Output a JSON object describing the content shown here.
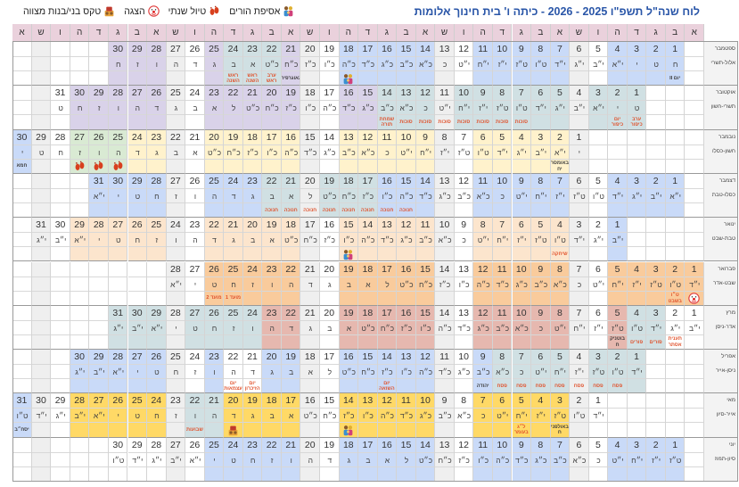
{
  "title": "לוח שנה\"ל תשפ\"ו 2025 - 2026 - כיתה ו' בית חינוך אלומות",
  "legend": [
    {
      "icon": "parents",
      "label": "אסיפת הורים"
    },
    {
      "icon": "trip",
      "label": "טיול שנתי"
    },
    {
      "icon": "clown",
      "label": "הצגה"
    },
    {
      "icon": "mitzvah",
      "label": "טקס בני/בנות מצווה"
    }
  ],
  "weekdays": [
    "א",
    "ב",
    "ג",
    "ד",
    "ה",
    "ו",
    "ש"
  ],
  "colors": {
    "B": "#c9daf8",
    "P": "#d9d2e9",
    "T": "#d0e0e3",
    "L": "#fce5cd",
    "O": "#f9cb9c",
    "R": "#e6b8af",
    "Y": "#ffd966",
    "y": "#fff2cc",
    "G": "#d9ead3",
    "S": "#efefef",
    "W": "#ffffff"
  },
  "months": [
    {
      "greg": "ספטמבר",
      "heb": "אלול-תשרי",
      "offset": 1,
      "dates": [
        1,
        2,
        3,
        4,
        5,
        6,
        7,
        8,
        9,
        10,
        11,
        12,
        13,
        14,
        15,
        16,
        17,
        18,
        19,
        20,
        21,
        22,
        23,
        24,
        25,
        26,
        27,
        28,
        29,
        30
      ],
      "hebrew": "ח ט י י״א י״ב י״ג י״ד ט״ו ט״ז י״ז י״ח י״ט כ כ״א כ״ב כ״ג כ״ד כ״ה כ״ו כ״ז כ״ח כ״ט א ב ג ד ה ו ז ח",
      "fill": "BBBBWSBBBBBWSBBBBBWSPTTTPWSPPP",
      "events": [
        {
          "d": 1,
          "text": "יום II",
          "dark": true
        },
        {
          "d": 18,
          "icon": "parents"
        },
        {
          "d": 21,
          "text": "גאוגרפיה",
          "dark": true
        },
        {
          "d": 22,
          "text": "ערב ראש"
        },
        {
          "d": 23,
          "text": "ראש השנה"
        },
        {
          "d": 24,
          "text": "ראש השנה"
        }
      ]
    },
    {
      "greg": "אוקטובר",
      "heb": "תשרי-חשון",
      "offset": 3,
      "dates": [
        1,
        2,
        3,
        4,
        5,
        6,
        7,
        8,
        9,
        10,
        11,
        12,
        13,
        14,
        15,
        16,
        17,
        18,
        19,
        20,
        21,
        22,
        23,
        24,
        25,
        26,
        27,
        28,
        29,
        30,
        31
      ],
      "hebrew": "ט י י״א י״ב י״ג י״ד ט״ו ט״ז י״ז י״ח י״ט כ כ״א כ״ב כ״ג כ״ד כ״ה כ״ו כ״ז כ״ח כ״ט ל א ב ג ד ה ו ז ח ט",
      "fill": "TTTSTTTTTTSTTTPPWSPPPPPWSPPPPPW",
      "events": [
        {
          "d": 1,
          "text": "ערב כיפור"
        },
        {
          "d": 2,
          "text": "יום כיפור"
        },
        {
          "d": 7,
          "text": "סוכות"
        },
        {
          "d": 8,
          "text": "סוכות"
        },
        {
          "d": 9,
          "text": "סוכות"
        },
        {
          "d": 10,
          "text": "סוכות"
        },
        {
          "d": 11,
          "text": "סוכות"
        },
        {
          "d": 12,
          "text": "סוכות"
        },
        {
          "d": 13,
          "text": "סוכות"
        },
        {
          "d": 14,
          "text": "שמחת תורה"
        }
      ]
    },
    {
      "greg": "נובמבר",
      "heb": "חשון-כסלו",
      "offset": 6,
      "dates": [
        1,
        2,
        3,
        4,
        5,
        6,
        7,
        8,
        9,
        10,
        11,
        12,
        13,
        14,
        15,
        16,
        17,
        18,
        19,
        20,
        21,
        22,
        23,
        24,
        25,
        26,
        27,
        28,
        29,
        30
      ],
      "hebrew": "י י״א י״ב י״ג י״ד ט״ו ט״ז י״ז י״ח י״ט כ כ״א כ״ב כ״ג כ״ד כ״ה כ״ו כ״ז כ״ח כ״ט א ב ג ד ה ו ז ח ט י",
      "fill": "SyyyyyWSyyyyyWSyyyyyWSyyGGGWSB",
      "events": [
        {
          "d": 2,
          "text": "באומסר יח",
          "dark": true
        },
        {
          "d": 25,
          "icon": "trip"
        },
        {
          "d": 26,
          "icon": "trip"
        },
        {
          "d": 27,
          "icon": "trip"
        },
        {
          "d": 30,
          "text": "חמא",
          "dark": true
        }
      ]
    },
    {
      "greg": "דצמבר",
      "heb": "כסלו-טבת",
      "offset": 1,
      "dates": [
        1,
        2,
        3,
        4,
        5,
        6,
        7,
        8,
        9,
        10,
        11,
        12,
        13,
        14,
        15,
        16,
        17,
        18,
        19,
        20,
        21,
        22,
        23,
        24,
        25,
        26,
        27,
        28,
        29,
        30,
        31
      ],
      "hebrew": "י״א י״ב י״ג י״ד ט״ו ט״ז י״ז י״ח י״ט כ כ״א כ״ב כ״ג כ״ד כ״ה כ״ו כ״ז כ״ח כ״ט ל א ב ג ד ה ו ז ח ט י י״א",
      "fill": "BBBBWSBBBBBWSBBBTTTSTTBBBWSBBBB",
      "events": [
        {
          "d": 15,
          "text": "חנוכה"
        },
        {
          "d": 16,
          "text": "חנוכה"
        },
        {
          "d": 17,
          "text": "חנוכה"
        },
        {
          "d": 18,
          "text": "חנוכה"
        },
        {
          "d": 19,
          "text": "חנוכה"
        },
        {
          "d": 20,
          "text": "חנוכה"
        },
        {
          "d": 21,
          "text": "חנוכה"
        },
        {
          "d": 22,
          "text": "חנוכה"
        }
      ]
    },
    {
      "greg": "ינואר",
      "heb": "טבת-שבט",
      "offset": 4,
      "dates": [
        1,
        2,
        3,
        4,
        5,
        6,
        7,
        8,
        9,
        10,
        11,
        12,
        13,
        14,
        15,
        16,
        17,
        18,
        19,
        20,
        21,
        22,
        23,
        24,
        25,
        26,
        27,
        28,
        29,
        30,
        31
      ],
      "hebrew": "י״ב י״ג י״ד ט״ו ט״ז י״ז י״ח י״ט כ כ״א כ״ב כ״ג כ״ד כ״ה כ״ו כ״ז כ״ח כ״ט א ב ג ד ה ו ז ח ט י י״א י״ב י״ג",
      "fill": "BWSLLLLLWSLLLLLWSLLLLLWSLLLLLWS",
      "events": [
        {
          "d": 4,
          "text": "שיחקה"
        },
        {
          "d": 15,
          "icon": "parents"
        }
      ]
    },
    {
      "greg": "פברואר",
      "heb": "שבט-אדר",
      "offset": 0,
      "dates": [
        1,
        2,
        3,
        4,
        5,
        6,
        7,
        8,
        9,
        10,
        11,
        12,
        13,
        14,
        15,
        16,
        17,
        18,
        19,
        20,
        21,
        22,
        23,
        24,
        25,
        26,
        27,
        28
      ],
      "hebrew": "י״ד ט״ו ט״ז י״ז י״ח י״ט כ כ״א כ״ב כ״ג כ״ד כ״ה כ״ו כ״ז כ״ח כ״ט ל א ב ג ד ה ו ז ח ט י י״א",
      "fill": "OOOOOWSOOOOOWSOOOOOWSOOOOOWS",
      "events": [
        {
          "d": 1,
          "icon": "clown"
        },
        {
          "d": 2,
          "text": "ט״ו בשבט"
        },
        {
          "d": 25,
          "text": "מועד 1"
        },
        {
          "d": 26,
          "text": "מועד 2"
        }
      ]
    },
    {
      "greg": "מרץ",
      "heb": "אדר-ניסן",
      "offset": 0,
      "dates": [
        1,
        2,
        3,
        4,
        5,
        6,
        7,
        8,
        9,
        10,
        11,
        12,
        13,
        14,
        15,
        16,
        17,
        18,
        19,
        20,
        21,
        22,
        23,
        24,
        25,
        26,
        27,
        28,
        29,
        30,
        31
      ],
      "hebrew": "י״ב י״ג י״ד ט״ו ט״ז י״ז י״ח י״ט כ כ״א כ״ב כ״ג כ״ד כ״ה כ״ו כ״ז כ״ח כ״ט א ב ג ד ה ו ז ח ט י י״א י״ב י״ג",
      "fill": "WWTTRWSRRRRRWSRRRRRWSRRTTTTSTTT",
      "events": [
        {
          "d": 2,
          "text": "תענית אסתר"
        },
        {
          "d": 3,
          "text": "פורים"
        },
        {
          "d": 4,
          "text": "פורים"
        },
        {
          "d": 5,
          "text": "בוטניק ח",
          "dark": true
        }
      ]
    },
    {
      "greg": "אפריל",
      "heb": "ניסן-אייר",
      "offset": 3,
      "dates": [
        1,
        2,
        3,
        4,
        5,
        6,
        7,
        8,
        9,
        10,
        11,
        12,
        13,
        14,
        15,
        16,
        17,
        18,
        19,
        20,
        21,
        22,
        23,
        24,
        25,
        26,
        27,
        28,
        29,
        30
      ],
      "hebrew": "י״ד ט״ו ט״ז י״ז י״ח י״ט כ כ״א כ״ב כ״ג כ״ד כ״ה כ״ו כ״ז כ״ח כ״ט ל א ב ג ד ה ו ז ח ט י י״א י״ב י״ג",
      "fill": "TTTSTTTTBWSBBBBBWSBBWWBWSBBBBB",
      "events": [
        {
          "d": 2,
          "text": "פסח"
        },
        {
          "d": 3,
          "text": "פסח"
        },
        {
          "d": 4,
          "text": "פסח"
        },
        {
          "d": 5,
          "text": "פסח"
        },
        {
          "d": 6,
          "text": "פסח"
        },
        {
          "d": 7,
          "text": "פסח"
        },
        {
          "d": 8,
          "text": "פסח"
        },
        {
          "d": 9,
          "text": "יהודה",
          "dark": true
        },
        {
          "d": 14,
          "text": "יום השואה"
        },
        {
          "d": 21,
          "text": "יום הזיכרון"
        },
        {
          "d": 22,
          "text": "יום עצמאות"
        }
      ]
    },
    {
      "greg": "מאי",
      "heb": "אייר-סיון",
      "offset": 5,
      "dates": [
        1,
        2,
        3,
        4,
        5,
        6,
        7,
        8,
        9,
        10,
        11,
        12,
        13,
        14,
        15,
        16,
        17,
        18,
        19,
        20,
        21,
        22,
        23,
        24,
        25,
        26,
        27,
        28,
        29,
        30,
        31
      ],
      "hebrew": "י״ד ט״ו ט״ז י״ז י״ח י״ט כ כ״א כ״ב כ״ג כ״ד כ״ה כ״ו כ״ז כ״ח כ״ט א ב ג ד ה ו ז ח ט י י״א י״ב י״ג י״ד ט״ו",
      "fill": "WSYYYYYWSYYYYYWSYYYYTTSYYYYYWSB",
      "events": [
        {
          "d": 3,
          "text": "באולפני ח",
          "dark": true
        },
        {
          "d": 5,
          "text": "ל״ג בעומר"
        },
        {
          "d": 14,
          "icon": "parents"
        },
        {
          "d": 20,
          "icon": "mitzvah"
        },
        {
          "d": 22,
          "text": "שבועות"
        },
        {
          "d": 31,
          "text": "יסח״ב",
          "dark": true
        }
      ]
    },
    {
      "greg": "יוני",
      "heb": "סיון-תמוז",
      "offset": 1,
      "dates": [
        1,
        2,
        3,
        4,
        5,
        6,
        7,
        8,
        9,
        10,
        11,
        12,
        13,
        14,
        15,
        16,
        17,
        18,
        19,
        20,
        21,
        22,
        23,
        24,
        25,
        26,
        27,
        28,
        29,
        30
      ],
      "hebrew": "ט״ז י״ז י״ח י״ט כ כ״א כ״ב כ״ג כ״ד כ״ה כ״ו כ״ז כ״ח כ״ט ל א ב ג ד ה ו ז ח ט י י״א י״ב י״ג י״ד ט״ו",
      "fill": "BBBBWSBBBBBWSBBBBBWSBBBBBWSWWW",
      "events": []
    }
  ]
}
